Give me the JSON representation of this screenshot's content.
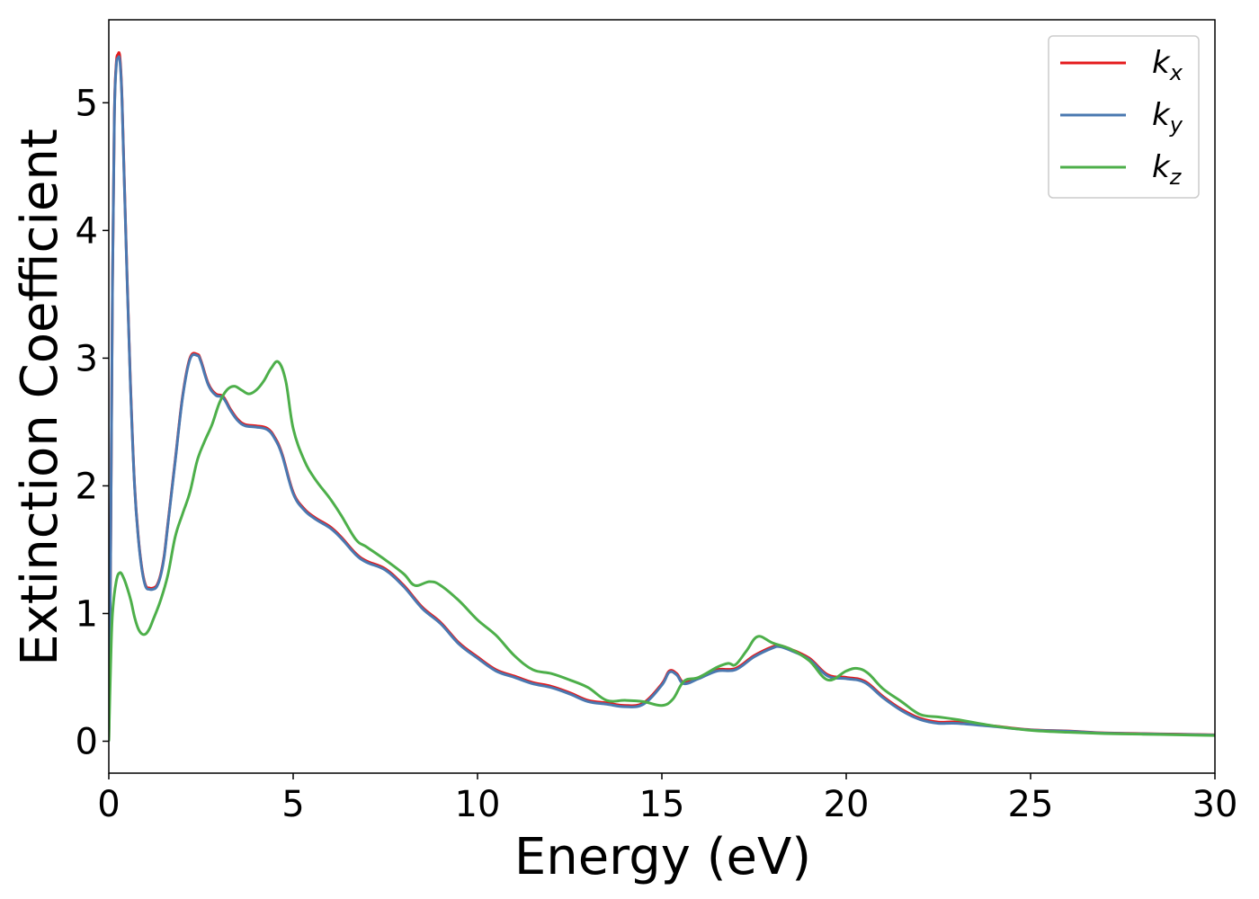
{
  "chart_data": {
    "type": "line",
    "title": "",
    "xlabel": "Energy (eV)",
    "ylabel": "Extinction Coefficient",
    "xlim": [
      0,
      30
    ],
    "ylim": [
      -0.25,
      5.65
    ],
    "xticks": [
      0,
      5,
      10,
      15,
      20,
      25,
      30
    ],
    "yticks": [
      0,
      1,
      2,
      3,
      4,
      5
    ],
    "grid": false,
    "legend_position": "top-right",
    "series": [
      {
        "name": "k",
        "subscript": "x",
        "color": "#e41a1c",
        "x": [
          0,
          0.05,
          0.1,
          0.15,
          0.2,
          0.25,
          0.3,
          0.35,
          0.4,
          0.5,
          0.6,
          0.7,
          0.8,
          0.9,
          1.0,
          1.1,
          1.2,
          1.3,
          1.4,
          1.5,
          1.6,
          1.8,
          2.0,
          2.2,
          2.4,
          2.5,
          2.7,
          2.9,
          3.1,
          3.3,
          3.5,
          3.7,
          4.0,
          4.3,
          4.5,
          4.7,
          5.0,
          5.3,
          5.6,
          6.0,
          6.3,
          6.7,
          7.0,
          7.5,
          8.0,
          8.5,
          9.0,
          9.5,
          10.0,
          10.5,
          11.0,
          11.5,
          12.0,
          12.5,
          13.0,
          13.5,
          14.0,
          14.5,
          15.0,
          15.2,
          15.4,
          15.6,
          16.0,
          16.5,
          17.0,
          17.5,
          18.0,
          18.2,
          18.5,
          19.0,
          19.5,
          20.0,
          20.5,
          21.0,
          21.5,
          22.0,
          22.5,
          23.0,
          24.0,
          25.0,
          26.0,
          27.0,
          28.0,
          29.0,
          30.0
        ],
        "y": [
          0.0,
          1.5,
          3.6,
          4.9,
          5.3,
          5.38,
          5.36,
          5.1,
          4.6,
          3.6,
          2.7,
          2.0,
          1.6,
          1.35,
          1.22,
          1.2,
          1.2,
          1.22,
          1.3,
          1.45,
          1.7,
          2.2,
          2.7,
          3.0,
          3.03,
          2.98,
          2.8,
          2.72,
          2.7,
          2.6,
          2.52,
          2.48,
          2.47,
          2.45,
          2.38,
          2.25,
          1.95,
          1.82,
          1.75,
          1.68,
          1.6,
          1.47,
          1.41,
          1.35,
          1.22,
          1.05,
          0.93,
          0.77,
          0.66,
          0.56,
          0.51,
          0.46,
          0.43,
          0.38,
          0.32,
          0.3,
          0.28,
          0.3,
          0.45,
          0.55,
          0.53,
          0.46,
          0.5,
          0.56,
          0.57,
          0.67,
          0.74,
          0.75,
          0.72,
          0.65,
          0.52,
          0.5,
          0.47,
          0.35,
          0.25,
          0.18,
          0.15,
          0.15,
          0.12,
          0.09,
          0.08,
          0.065,
          0.06,
          0.055,
          0.05
        ]
      },
      {
        "name": "k",
        "subscript": "y",
        "color": "#4a78b0",
        "x": [
          0,
          0.05,
          0.1,
          0.15,
          0.2,
          0.25,
          0.3,
          0.35,
          0.4,
          0.5,
          0.6,
          0.7,
          0.8,
          0.9,
          1.0,
          1.1,
          1.2,
          1.3,
          1.4,
          1.5,
          1.6,
          1.8,
          2.0,
          2.2,
          2.4,
          2.5,
          2.7,
          2.9,
          3.1,
          3.3,
          3.5,
          3.7,
          4.0,
          4.3,
          4.5,
          4.7,
          5.0,
          5.3,
          5.6,
          6.0,
          6.3,
          6.7,
          7.0,
          7.5,
          8.0,
          8.5,
          9.0,
          9.5,
          10.0,
          10.5,
          11.0,
          11.5,
          12.0,
          12.5,
          13.0,
          13.5,
          14.0,
          14.5,
          15.0,
          15.2,
          15.4,
          15.6,
          16.0,
          16.5,
          17.0,
          17.5,
          18.0,
          18.2,
          18.5,
          19.0,
          19.5,
          20.0,
          20.5,
          21.0,
          21.5,
          22.0,
          22.5,
          23.0,
          24.0,
          25.0,
          26.0,
          27.0,
          28.0,
          29.0,
          30.0
        ],
        "y": [
          0.0,
          1.5,
          3.6,
          4.88,
          5.28,
          5.35,
          5.33,
          5.08,
          4.58,
          3.58,
          2.68,
          1.99,
          1.59,
          1.34,
          1.21,
          1.19,
          1.19,
          1.21,
          1.29,
          1.44,
          1.69,
          2.19,
          2.69,
          2.99,
          3.02,
          2.97,
          2.79,
          2.71,
          2.69,
          2.59,
          2.51,
          2.47,
          2.46,
          2.44,
          2.37,
          2.24,
          1.94,
          1.81,
          1.74,
          1.67,
          1.59,
          1.46,
          1.4,
          1.34,
          1.21,
          1.04,
          0.92,
          0.76,
          0.65,
          0.55,
          0.5,
          0.45,
          0.42,
          0.37,
          0.31,
          0.29,
          0.27,
          0.29,
          0.44,
          0.54,
          0.52,
          0.45,
          0.49,
          0.55,
          0.56,
          0.66,
          0.73,
          0.74,
          0.71,
          0.64,
          0.51,
          0.49,
          0.46,
          0.34,
          0.24,
          0.17,
          0.14,
          0.14,
          0.115,
          0.088,
          0.078,
          0.063,
          0.058,
          0.053,
          0.048
        ]
      },
      {
        "name": "k",
        "subscript": "z",
        "color": "#4daf4a",
        "x": [
          0,
          0.05,
          0.1,
          0.2,
          0.3,
          0.4,
          0.5,
          0.6,
          0.7,
          0.8,
          0.9,
          1.0,
          1.1,
          1.2,
          1.4,
          1.6,
          1.8,
          2.0,
          2.2,
          2.4,
          2.6,
          2.8,
          3.0,
          3.2,
          3.4,
          3.6,
          3.8,
          4.0,
          4.2,
          4.4,
          4.6,
          4.8,
          5.0,
          5.3,
          5.6,
          6.0,
          6.3,
          6.7,
          7.0,
          7.5,
          8.0,
          8.3,
          8.7,
          9.0,
          9.5,
          10.0,
          10.5,
          11.0,
          11.5,
          12.0,
          12.5,
          13.0,
          13.5,
          14.0,
          14.5,
          15.0,
          15.3,
          15.6,
          16.0,
          16.5,
          16.8,
          17.0,
          17.3,
          17.6,
          18.0,
          18.5,
          19.0,
          19.5,
          20.0,
          20.3,
          20.6,
          21.0,
          21.5,
          22.0,
          22.5,
          23.0,
          24.0,
          25.0,
          26.0,
          27.0,
          28.0,
          29.0,
          30.0
        ],
        "y": [
          0.0,
          0.6,
          1.0,
          1.25,
          1.32,
          1.28,
          1.2,
          1.1,
          0.97,
          0.88,
          0.84,
          0.84,
          0.88,
          0.95,
          1.1,
          1.3,
          1.6,
          1.78,
          1.95,
          2.2,
          2.35,
          2.48,
          2.65,
          2.75,
          2.78,
          2.75,
          2.72,
          2.75,
          2.82,
          2.92,
          2.97,
          2.82,
          2.45,
          2.2,
          2.05,
          1.9,
          1.77,
          1.58,
          1.52,
          1.42,
          1.31,
          1.22,
          1.25,
          1.22,
          1.1,
          0.95,
          0.83,
          0.67,
          0.56,
          0.53,
          0.48,
          0.42,
          0.32,
          0.32,
          0.31,
          0.28,
          0.33,
          0.47,
          0.5,
          0.58,
          0.61,
          0.6,
          0.71,
          0.82,
          0.77,
          0.72,
          0.63,
          0.48,
          0.55,
          0.57,
          0.53,
          0.41,
          0.31,
          0.21,
          0.19,
          0.17,
          0.12,
          0.085,
          0.07,
          0.06,
          0.055,
          0.05,
          0.045
        ]
      }
    ]
  }
}
